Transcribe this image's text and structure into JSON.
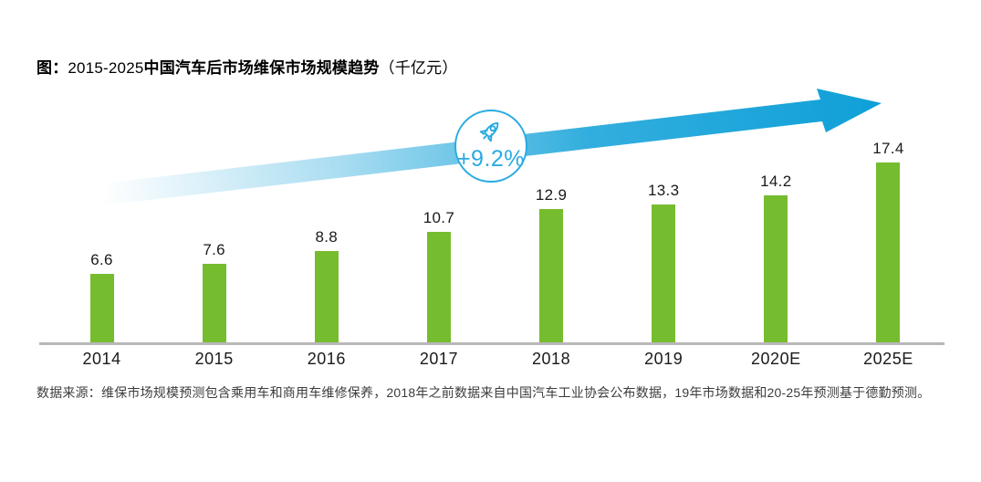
{
  "title": {
    "prefix": "图：",
    "range": "2015-2025",
    "main": "中国汽车后市场维保市场规模趋势",
    "unit": "（千亿元）"
  },
  "badge": {
    "icon": "rocket-icon",
    "growth_label": "+9.2%"
  },
  "chart_data": {
    "type": "bar",
    "title": "2015-2025中国汽车后市场维保市场规模趋势（千亿元）",
    "categories": [
      "2014",
      "2015",
      "2016",
      "2017",
      "2018",
      "2019",
      "2020E",
      "2025E"
    ],
    "values": [
      6.6,
      7.6,
      8.8,
      10.7,
      12.9,
      13.3,
      14.2,
      17.4
    ],
    "xlabel": "",
    "ylabel": "",
    "ylim": [
      0,
      18
    ],
    "grid": false,
    "legend": "none",
    "annotation": "+9.2%",
    "bar_color": "#76BC2F"
  },
  "footer": {
    "source_note": "数据来源：维保市场规模预测包含乘用车和商用车维修保养，2018年之前数据来自中国汽车工业协会公布数据，19年市场数据和20-25年预测基于德勤预测。"
  },
  "colors": {
    "bar_green": "#76BC2F",
    "arrow_blue": "#0FA0D8",
    "badge_blue": "#29ABE2",
    "axis_gray": "#B8B8B8"
  }
}
